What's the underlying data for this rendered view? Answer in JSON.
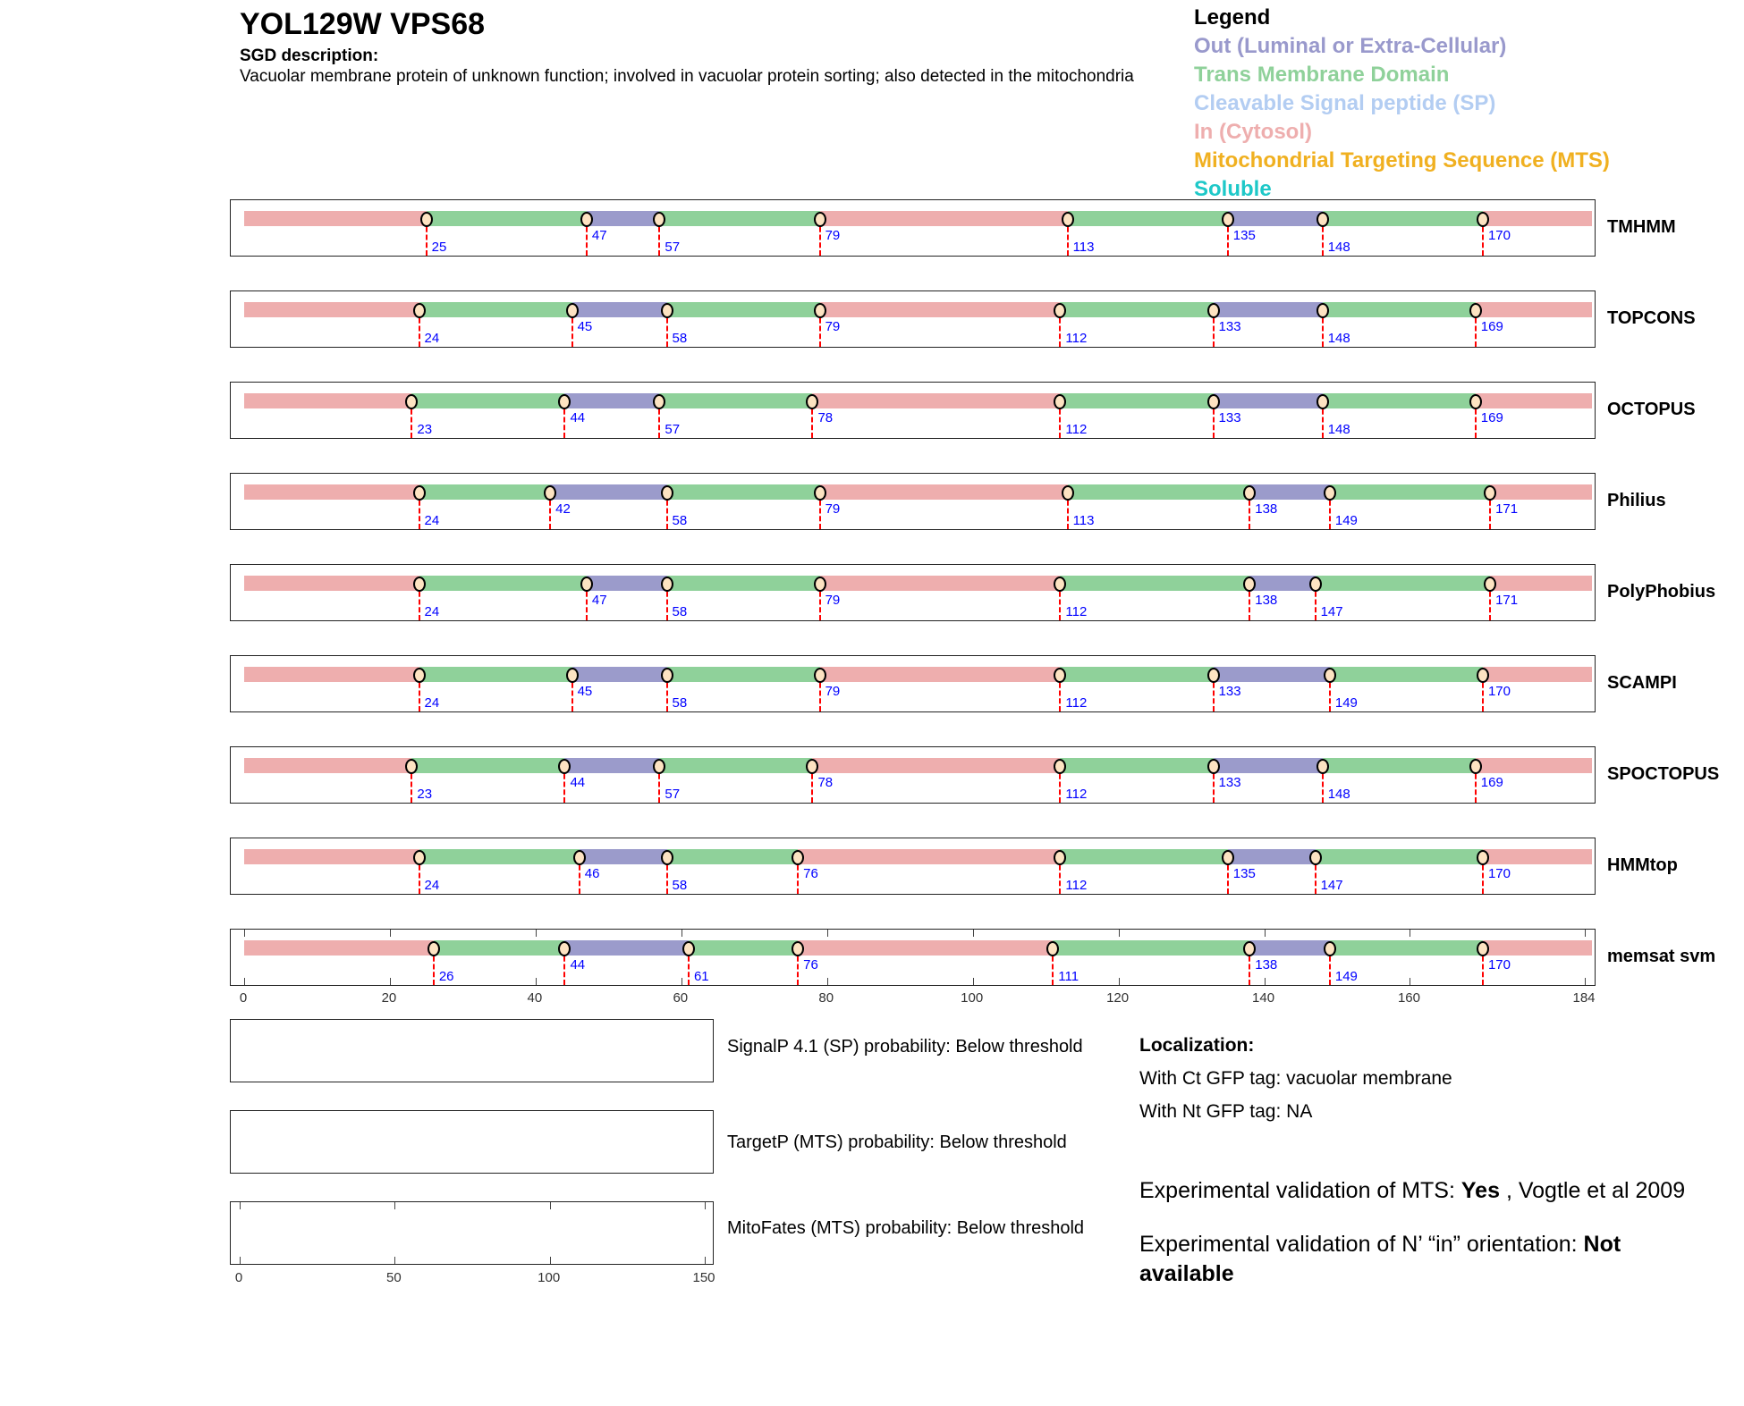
{
  "header": {
    "title": "YOL129W  VPS68",
    "sgd_label": "SGD description:",
    "sgd_text": "Vacuolar membrane protein of unknown function; involved in vacuolar protein sorting; also detected in the mitochondria"
  },
  "legend": {
    "title": "Legend",
    "items": [
      {
        "label": "Out (Luminal or Extra-Cellular)",
        "color": "#9999cc"
      },
      {
        "label": "Trans Membrane Domain",
        "color": "#8fd19a"
      },
      {
        "label": "Cleavable Signal peptide (SP)",
        "color": "#b3cdf2"
      },
      {
        "label": "In (Cytosol)",
        "color": "#eeaeae"
      },
      {
        "label": "Mitochondrial Targeting Sequence (MTS)",
        "color": "#f0b020"
      },
      {
        "label": "Soluble",
        "color": "#1ec8c8"
      }
    ]
  },
  "chart_data": {
    "type": "topology-track",
    "xlim": [
      0,
      184
    ],
    "sequence_length": 184,
    "x_ticks": [
      0,
      20,
      40,
      60,
      80,
      100,
      120,
      140,
      160,
      184
    ],
    "segment_order": [
      "in",
      "tm",
      "out",
      "tm",
      "in",
      "tm",
      "out",
      "tm",
      "in"
    ],
    "colors": {
      "in": "#eeaeae",
      "tm": "#8fd19a",
      "out": "#9b9bcb"
    },
    "tracks": [
      {
        "name": "TMHMM",
        "boundaries": [
          25,
          47,
          57,
          79,
          113,
          135,
          148,
          170
        ]
      },
      {
        "name": "TOPCONS",
        "boundaries": [
          24,
          45,
          58,
          79,
          112,
          133,
          148,
          169
        ]
      },
      {
        "name": "OCTOPUS",
        "boundaries": [
          23,
          44,
          57,
          78,
          112,
          133,
          148,
          169
        ]
      },
      {
        "name": "Philius",
        "boundaries": [
          24,
          42,
          58,
          79,
          113,
          138,
          149,
          171
        ]
      },
      {
        "name": "PolyPhobius",
        "boundaries": [
          24,
          47,
          58,
          79,
          112,
          138,
          147,
          171
        ]
      },
      {
        "name": "SCAMPI",
        "boundaries": [
          24,
          45,
          58,
          79,
          112,
          133,
          149,
          170
        ]
      },
      {
        "name": "SPOCTOPUS",
        "boundaries": [
          23,
          44,
          57,
          78,
          112,
          133,
          148,
          169
        ]
      },
      {
        "name": "HMMtop",
        "boundaries": [
          24,
          46,
          58,
          76,
          112,
          135,
          147,
          170
        ]
      },
      {
        "name": "memsat svm",
        "boundaries": [
          26,
          44,
          61,
          76,
          111,
          138,
          149,
          170
        ]
      }
    ],
    "prob_axis": {
      "xlim": [
        0,
        150
      ],
      "ticks": [
        0,
        50,
        100,
        150
      ]
    }
  },
  "predictions": {
    "signalp": "SignalP 4.1 (SP) probability: Below threshold",
    "targetp": "TargetP (MTS) probability: Below threshold",
    "mitofates": "MitoFates (MTS) probability: Below threshold"
  },
  "localization": {
    "title": "Localization:",
    "ct": "With Ct GFP tag: vacuolar membrane",
    "nt": "With Nt GFP tag: NA",
    "mts_prefix": "Experimental validation of MTS: ",
    "mts_value": "Yes",
    "mts_suffix": " , Vogtle et al 2009",
    "orient_prefix": "Experimental validation of N’ “in” orientation: ",
    "orient_value": "Not available"
  }
}
